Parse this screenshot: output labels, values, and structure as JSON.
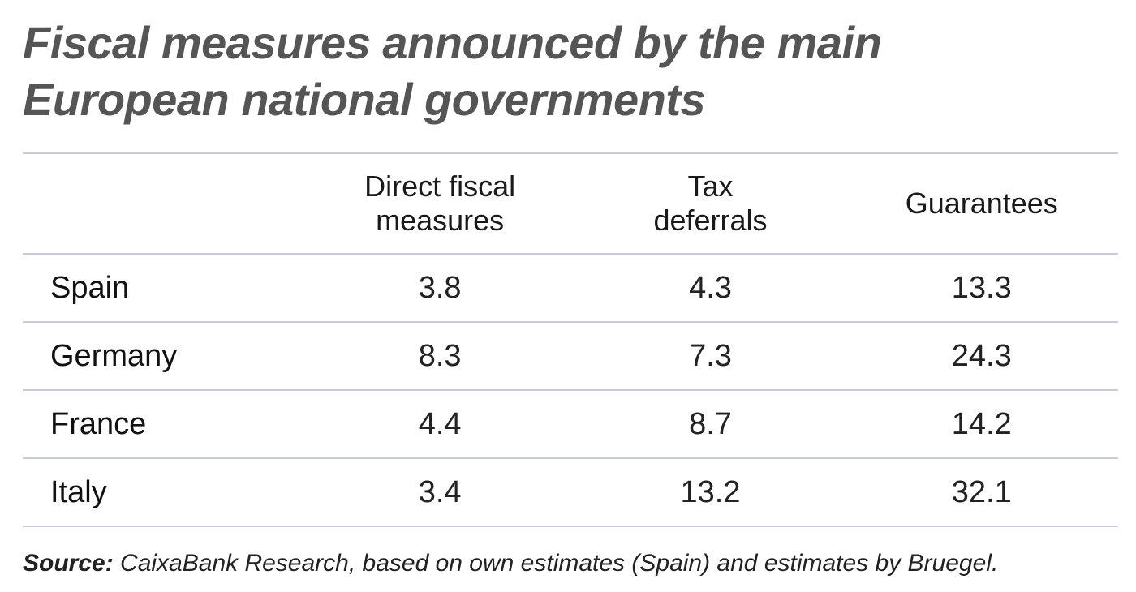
{
  "title": [
    "Fiscal measures announced by the main",
    "European national governments"
  ],
  "table": {
    "columns": [
      "Direct fiscal measures",
      "Tax deferrals",
      "Guarantees"
    ],
    "rows": [
      [
        "Spain",
        3.8,
        4.3,
        13.3
      ],
      [
        "Germany",
        8.3,
        7.3,
        24.3
      ],
      [
        "France",
        4.4,
        8.7,
        14.2
      ],
      [
        "Italy",
        3.4,
        13.2,
        32.1
      ]
    ]
  },
  "source": {
    "label": "Source:",
    "text": "CaixaBank Research, based on own estimates (Spain) and estimates by Bruegel."
  }
}
